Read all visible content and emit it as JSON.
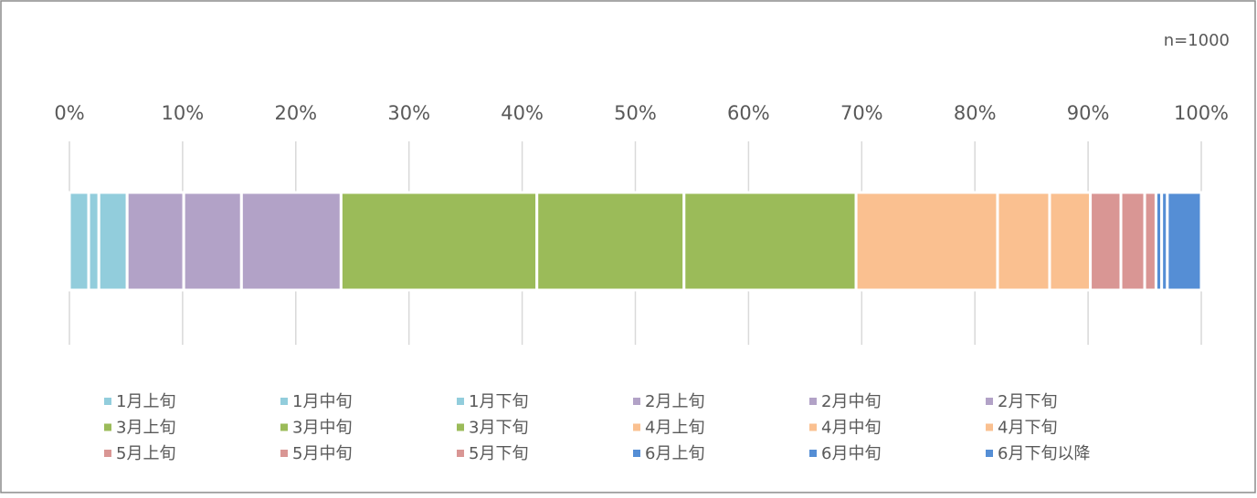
{
  "chart_data": {
    "type": "stacked-bar-horizontal",
    "annotation": "n=1000",
    "xlim": [
      0,
      100
    ],
    "xticks": [
      {
        "value": 0,
        "label": "0%"
      },
      {
        "value": 10,
        "label": "10%"
      },
      {
        "value": 20,
        "label": "20%"
      },
      {
        "value": 30,
        "label": "30%"
      },
      {
        "value": 40,
        "label": "40%"
      },
      {
        "value": 50,
        "label": "50%"
      },
      {
        "value": 60,
        "label": "60%"
      },
      {
        "value": 70,
        "label": "70%"
      },
      {
        "value": 80,
        "label": "80%"
      },
      {
        "value": 90,
        "label": "90%"
      },
      {
        "value": 100,
        "label": "100%"
      }
    ],
    "grid": true,
    "legend": "bottom",
    "series": [
      {
        "name": "1月上旬",
        "color": "#92cddc",
        "values": [
          1.7
        ]
      },
      {
        "name": "1月中旬",
        "color": "#92cddc",
        "values": [
          0.9
        ]
      },
      {
        "name": "1月下旬",
        "color": "#92cddc",
        "values": [
          2.5
        ]
      },
      {
        "name": "2月上旬",
        "color": "#b2a2c7",
        "values": [
          5.0
        ]
      },
      {
        "name": "2月中旬",
        "color": "#b2a2c7",
        "values": [
          5.1
        ]
      },
      {
        "name": "2月下旬",
        "color": "#b2a2c7",
        "values": [
          8.8
        ]
      },
      {
        "name": "3月上旬",
        "color": "#9bbb59",
        "values": [
          17.3
        ]
      },
      {
        "name": "3月中旬",
        "color": "#9bbb59",
        "values": [
          13.0
        ]
      },
      {
        "name": "3月下旬",
        "color": "#9bbb59",
        "values": [
          15.2
        ]
      },
      {
        "name": "4月上旬",
        "color": "#fac090",
        "values": [
          12.5
        ]
      },
      {
        "name": "4月中旬",
        "color": "#fac090",
        "values": [
          4.6
        ]
      },
      {
        "name": "4月下旬",
        "color": "#fac090",
        "values": [
          3.6
        ]
      },
      {
        "name": "5月上旬",
        "color": "#d99694",
        "values": [
          2.7
        ]
      },
      {
        "name": "5月中旬",
        "color": "#d99694",
        "values": [
          2.1
        ]
      },
      {
        "name": "5月下旬",
        "color": "#d99694",
        "values": [
          1.0
        ]
      },
      {
        "name": "6月上旬",
        "color": "#558ed5",
        "values": [
          0.5
        ]
      },
      {
        "name": "6月中旬",
        "color": "#558ed5",
        "values": [
          0.5
        ]
      },
      {
        "name": "6月下旬以降",
        "color": "#558ed5",
        "values": [
          3.0
        ]
      }
    ]
  }
}
